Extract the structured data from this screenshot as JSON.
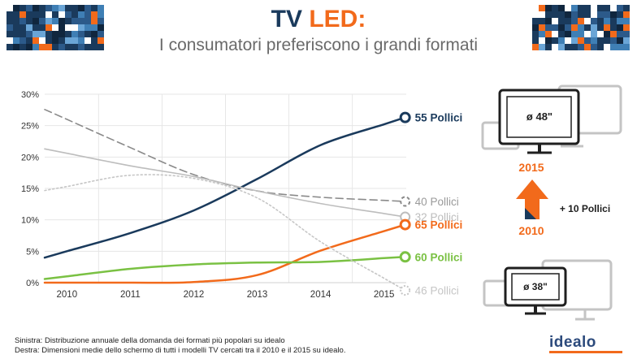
{
  "header": {
    "title_part1": "TV",
    "title_part2": "LED:",
    "subtitle": "I consumatori preferiscono i grandi formati"
  },
  "chart_data": {
    "type": "line",
    "x": [
      2010,
      2011,
      2012,
      2013,
      2014,
      2015
    ],
    "xlim": [
      2009.65,
      2015.35
    ],
    "ylim": [
      0,
      30
    ],
    "y_ticks": [
      "0%",
      "5%",
      "10%",
      "15%",
      "20%",
      "25%",
      "30%"
    ],
    "x_ticks": [
      "2010",
      "2011",
      "2012",
      "2013",
      "2014",
      "2015"
    ],
    "series": [
      {
        "name": "55 Pollici",
        "values": [
          5,
          7.9,
          11.5,
          16.5,
          21.9,
          25.2
        ],
        "color": "#1a3a5c",
        "style": "solid",
        "width": 2.5,
        "label_color": "#1a3a5c"
      },
      {
        "name": "40 Pollici",
        "values": [
          26,
          21.5,
          17.2,
          14.6,
          13.6,
          13.1
        ],
        "color": "#8a8a8a",
        "style": "dashed",
        "width": 1.6,
        "label_color": "#9a9a9a"
      },
      {
        "name": "32 Pollici",
        "values": [
          20.6,
          18.6,
          16.9,
          14.6,
          12.6,
          11.0
        ],
        "color": "#bdbdbd",
        "style": "solid",
        "width": 1.6,
        "label_color": "#bdbdbd"
      },
      {
        "name": "65 Pollici",
        "values": [
          0,
          0,
          0.1,
          1.2,
          5.1,
          8.2
        ],
        "color": "#f26a1b",
        "style": "solid",
        "width": 2.5,
        "label_color": "#f26a1b"
      },
      {
        "name": "60 Pollici",
        "values": [
          1.0,
          2.2,
          2.9,
          3.2,
          3.3,
          3.9
        ],
        "color": "#7ac143",
        "style": "solid",
        "width": 2.5,
        "label_color": "#7ac143"
      },
      {
        "name": "46 Pollici",
        "values": [
          15.3,
          17.1,
          16.6,
          13.5,
          6.5,
          0.7
        ],
        "color": "#c6c6c6",
        "style": "dotted",
        "width": 1.6,
        "label_color": "#c6c6c6"
      }
    ]
  },
  "right_panel": {
    "size_2015": "ø 48\"",
    "size_2010": "ø 38\"",
    "year_top": "2015",
    "year_bottom": "2010",
    "delta": "+ 10 Pollici"
  },
  "footer": {
    "note1": "Sinistra: Distribuzione  annuale della domanda dei formati più popolari su idealo",
    "note2": "Destra: Dimensioni medie dello schermo di tutti i modelli TV cercati tra il 2010 e il 2015 su idealo.",
    "logo": "idealo"
  },
  "colors": {
    "navy": "#1a3a5c",
    "orange": "#f26a1b",
    "green": "#7ac143",
    "grey": "#bdbdbd"
  }
}
